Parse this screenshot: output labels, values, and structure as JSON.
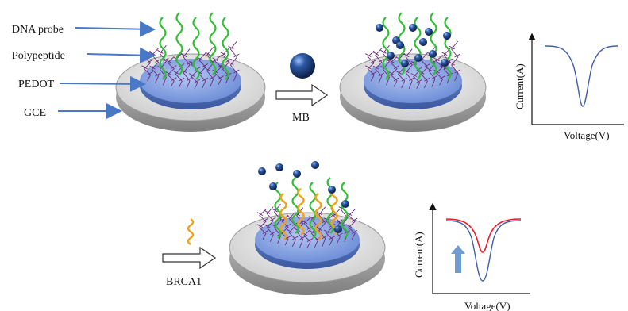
{
  "labels": {
    "dna_probe": "DNA probe",
    "polypeptide": "Polypeptide",
    "pedot": "PEDOT",
    "gce": "GCE",
    "mb": "MB",
    "brca1": "BRCA1"
  },
  "plot_top": {
    "xlabel": "Voltage(V)",
    "ylabel": "Current(A)",
    "curve_color": "#3f5fa8"
  },
  "plot_bottom": {
    "xlabel": "Voltage(V)",
    "ylabel": "Current(A)",
    "curve_colors": [
      "#ea1c2a",
      "#3f5fa8"
    ],
    "arrow_color": "#6f9bd1"
  },
  "colors": {
    "electrode_rim": "#a9a9a9",
    "electrode_face": "#e4e4e4",
    "pedot_disk": "#8aa8e8",
    "polypeptide": "#6a2a7e",
    "dna_probe": "#2fbf33",
    "target_dna": "#f2a11a",
    "mb_bead": "#1f3f7a",
    "arrow_blue": "#4a78c8"
  }
}
